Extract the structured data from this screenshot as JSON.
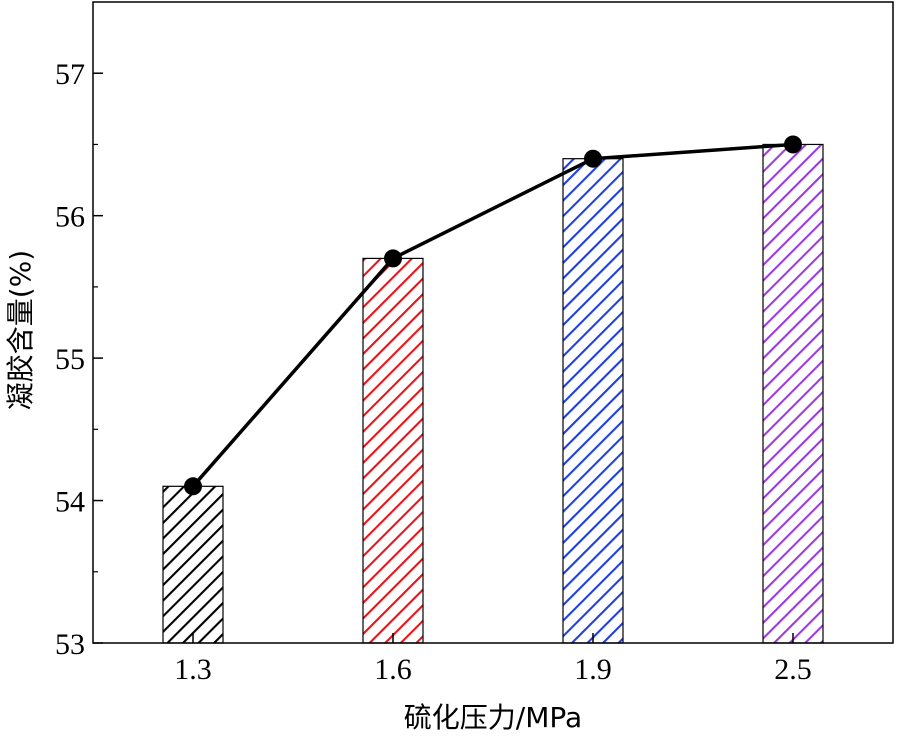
{
  "chart_data": {
    "type": "bar",
    "title": "",
    "xlabel": "硫化压力/MPa",
    "ylabel": "凝胶含量(%)",
    "categories": [
      "1.3",
      "1.6",
      "1.9",
      "2.5"
    ],
    "values": [
      54.1,
      55.7,
      56.4,
      56.5
    ],
    "ylim": [
      53,
      57.5
    ],
    "yticks": [
      53,
      54,
      55,
      56,
      57
    ],
    "bar_colors": [
      "#000000",
      "#e8141b",
      "#1f3fe0",
      "#9b3be0"
    ],
    "bar_pattern": "diagonal-hatch",
    "overlay_line": {
      "type": "line",
      "marker": "filled-circle",
      "color": "#000000",
      "values": [
        54.1,
        55.7,
        56.4,
        56.5
      ]
    },
    "grid": false,
    "legend": "none"
  }
}
